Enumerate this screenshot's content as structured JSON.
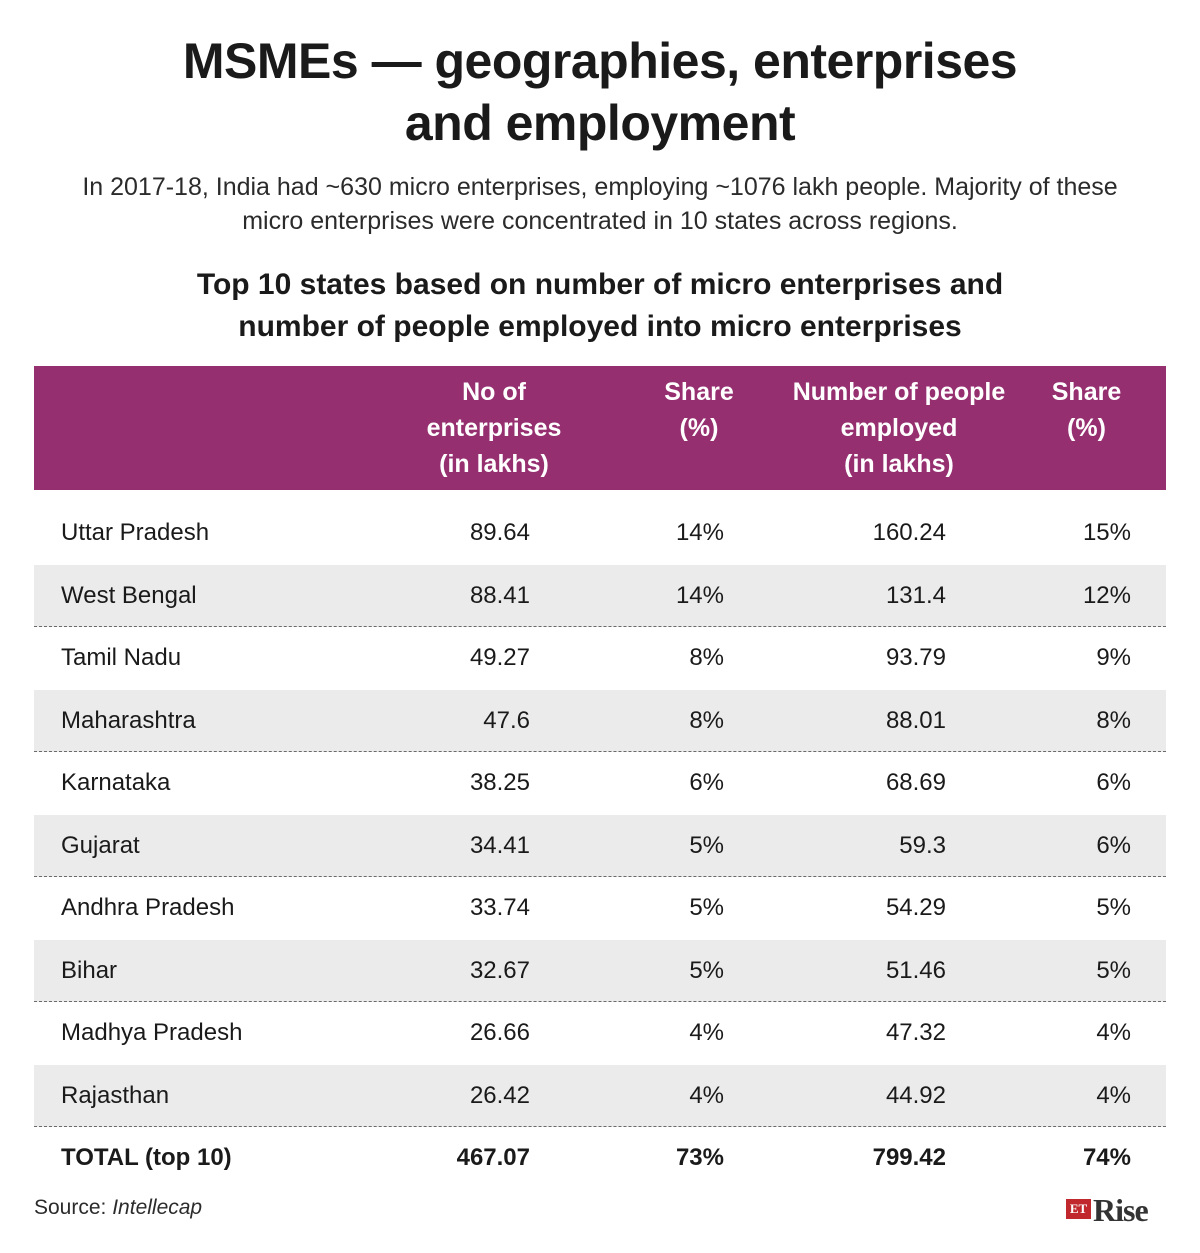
{
  "title": "MSMEs — geographies, enterprises and employment",
  "subtitle": "In 2017-18, India had ~630 micro enterprises, employing ~1076 lakh people. Majority of these micro enterprises were concentrated in 10 states across regions.",
  "table_title": "Top 10 states based on number of micro enterprises and number of people employed into micro enterprises",
  "colors": {
    "header_bg": "#962f70",
    "header_text": "#ffffff",
    "stripe": "#ebebeb",
    "logo_red": "#c0282e"
  },
  "chart_data": {
    "type": "table",
    "title": "Top 10 states based on number of micro enterprises and number of people employed into micro enterprises",
    "columns": [
      "",
      "No of enterprises (in lakhs)",
      "Share (%)",
      "Number of people employed (in lakhs)",
      "Share (%)"
    ],
    "header_lines": {
      "enterprises": [
        "No of",
        "enterprises",
        "(in lakhs)"
      ],
      "share1": [
        "Share",
        "(%)"
      ],
      "people": [
        "Number of people",
        "employed",
        "(in lakhs)"
      ],
      "share2": [
        "Share",
        "(%)"
      ]
    },
    "rows": [
      {
        "state": "Uttar Pradesh",
        "enterprises": "89.64",
        "share_enterprises": "14%",
        "people": "160.24",
        "share_people": "15%"
      },
      {
        "state": "West Bengal",
        "enterprises": "88.41",
        "share_enterprises": "14%",
        "people": "131.4",
        "share_people": "12%"
      },
      {
        "state": "Tamil Nadu",
        "enterprises": "49.27",
        "share_enterprises": "8%",
        "people": "93.79",
        "share_people": "9%"
      },
      {
        "state": "Maharashtra",
        "enterprises": "47.6",
        "share_enterprises": "8%",
        "people": "88.01",
        "share_people": "8%"
      },
      {
        "state": "Karnataka",
        "enterprises": "38.25",
        "share_enterprises": "6%",
        "people": "68.69",
        "share_people": "6%"
      },
      {
        "state": "Gujarat",
        "enterprises": "34.41",
        "share_enterprises": "5%",
        "people": "59.3",
        "share_people": "6%"
      },
      {
        "state": "Andhra Pradesh",
        "enterprises": "33.74",
        "share_enterprises": "5%",
        "people": "54.29",
        "share_people": "5%"
      },
      {
        "state": "Bihar",
        "enterprises": "32.67",
        "share_enterprises": "5%",
        "people": "51.46",
        "share_people": "5%"
      },
      {
        "state": "Madhya Pradesh",
        "enterprises": "26.66",
        "share_enterprises": "4%",
        "people": "47.32",
        "share_people": "4%"
      },
      {
        "state": "Rajasthan",
        "enterprises": "26.42",
        "share_enterprises": "4%",
        "people": "44.92",
        "share_people": "4%"
      }
    ],
    "total": {
      "state": "TOTAL (top 10)",
      "enterprises": "467.07",
      "share_enterprises": "73%",
      "people": "799.42",
      "share_people": "74%"
    }
  },
  "source": {
    "label": "Source:",
    "name": "Intellecap"
  },
  "logo": {
    "et": "ET",
    "rise": "Rise"
  }
}
